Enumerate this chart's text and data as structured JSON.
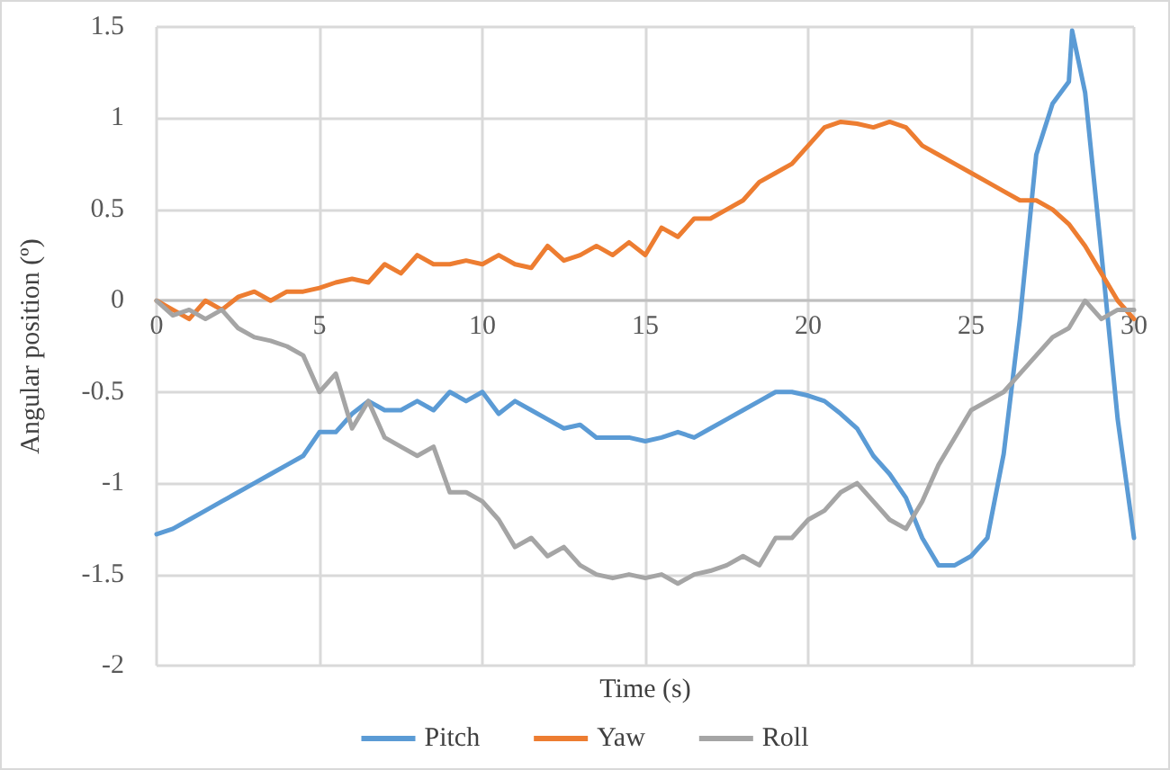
{
  "chart_data": {
    "type": "line",
    "xlabel": "Time (s)",
    "ylabel": "Angular position (º)",
    "x": [
      0,
      0.5,
      1,
      1.5,
      2,
      2.5,
      3,
      3.5,
      4,
      4.5,
      5,
      5.5,
      6,
      6.5,
      7,
      7.5,
      8,
      8.5,
      9,
      9.5,
      10,
      10.5,
      11,
      11.5,
      12,
      12.5,
      13,
      13.5,
      14,
      14.5,
      15,
      15.5,
      16,
      16.5,
      17,
      17.5,
      18,
      18.5,
      19,
      19.5,
      20,
      20.5,
      21,
      21.5,
      22,
      22.5,
      23,
      23.5,
      24,
      24.5,
      25,
      25.5,
      26,
      26.5,
      27,
      27.5,
      28,
      28.5,
      29,
      29.5,
      30
    ],
    "series": [
      {
        "name": "Pitch",
        "color": "#5b9bd5",
        "x": [
          0,
          0.5,
          1,
          1.5,
          2,
          2.5,
          3,
          3.5,
          4,
          4.5,
          5,
          5.5,
          6,
          6.5,
          7,
          7.5,
          8,
          8.5,
          9,
          9.5,
          10,
          10.5,
          11,
          11.5,
          12,
          12.5,
          13,
          13.5,
          14,
          14.5,
          15,
          15.5,
          16,
          16.5,
          17,
          17.5,
          18,
          18.5,
          19,
          19.5,
          20,
          20.5,
          21,
          21.5,
          22,
          22.5,
          23,
          23.5,
          24,
          24.5,
          25,
          25.5,
          26,
          26.5,
          27,
          27.5,
          28,
          28.1,
          28.5,
          29,
          29.5,
          30
        ],
        "values": [
          -1.28,
          -1.25,
          -1.2,
          -1.15,
          -1.1,
          -1.05,
          -1.0,
          -0.95,
          -0.9,
          -0.85,
          -0.72,
          -0.72,
          -0.62,
          -0.55,
          -0.6,
          -0.6,
          -0.55,
          -0.6,
          -0.5,
          -0.55,
          -0.5,
          -0.62,
          -0.55,
          -0.6,
          -0.65,
          -0.7,
          -0.68,
          -0.75,
          -0.75,
          -0.75,
          -0.77,
          -0.75,
          -0.72,
          -0.75,
          -0.7,
          -0.65,
          -0.6,
          -0.55,
          -0.5,
          -0.5,
          -0.52,
          -0.55,
          -0.62,
          -0.7,
          -0.85,
          -0.95,
          -1.08,
          -1.3,
          -1.45,
          -1.45,
          -1.4,
          -1.3,
          -0.84,
          -0.1,
          0.8,
          1.08,
          1.2,
          1.48,
          1.14,
          0.26,
          -0.65,
          -1.3
        ]
      },
      {
        "name": "Yaw",
        "color": "#ed7d31",
        "values": [
          0.0,
          -0.05,
          -0.1,
          0.0,
          -0.05,
          0.02,
          0.05,
          0.0,
          0.05,
          0.05,
          0.07,
          0.1,
          0.12,
          0.1,
          0.2,
          0.15,
          0.25,
          0.2,
          0.2,
          0.22,
          0.2,
          0.25,
          0.2,
          0.18,
          0.3,
          0.22,
          0.25,
          0.3,
          0.25,
          0.32,
          0.25,
          0.4,
          0.35,
          0.45,
          0.45,
          0.5,
          0.55,
          0.65,
          0.7,
          0.75,
          0.85,
          0.95,
          0.98,
          0.97,
          0.95,
          0.98,
          0.95,
          0.85,
          0.8,
          0.75,
          0.7,
          0.65,
          0.6,
          0.55,
          0.55,
          0.5,
          0.42,
          0.3,
          0.15,
          0.0,
          -0.1
        ]
      },
      {
        "name": "Roll",
        "color": "#a5a5a5",
        "values": [
          0.0,
          -0.08,
          -0.05,
          -0.1,
          -0.05,
          -0.15,
          -0.2,
          -0.22,
          -0.25,
          -0.3,
          -0.5,
          -0.4,
          -0.7,
          -0.55,
          -0.75,
          -0.8,
          -0.85,
          -0.8,
          -1.05,
          -1.05,
          -1.1,
          -1.2,
          -1.35,
          -1.3,
          -1.4,
          -1.35,
          -1.45,
          -1.5,
          -1.52,
          -1.5,
          -1.52,
          -1.5,
          -1.55,
          -1.5,
          -1.48,
          -1.45,
          -1.4,
          -1.45,
          -1.3,
          -1.3,
          -1.2,
          -1.15,
          -1.05,
          -1.0,
          -1.1,
          -1.2,
          -1.25,
          -1.1,
          -0.9,
          -0.75,
          -0.6,
          -0.55,
          -0.5,
          -0.4,
          -0.3,
          -0.2,
          -0.15,
          0.0,
          -0.1,
          -0.05,
          -0.05
        ]
      }
    ],
    "xlim": [
      0,
      30
    ],
    "xticks": [
      0,
      5,
      10,
      15,
      20,
      25,
      30
    ],
    "ylim": [
      -2,
      1.5
    ],
    "yticks": [
      {
        "value": -2,
        "label": "-2"
      },
      {
        "value": -1.5,
        "label": "-1.5"
      },
      {
        "value": -1,
        "label": "-1"
      },
      {
        "value": -0.5,
        "label": "-0.5"
      },
      {
        "value": 0,
        "label": "0"
      },
      {
        "value": 0.5,
        "label": "0.5"
      },
      {
        "value": 1,
        "label": "1"
      },
      {
        "value": 1.5,
        "label": "1.5"
      }
    ],
    "grid": true,
    "legend": "bottom",
    "marker": "none",
    "line_style": "solid"
  }
}
